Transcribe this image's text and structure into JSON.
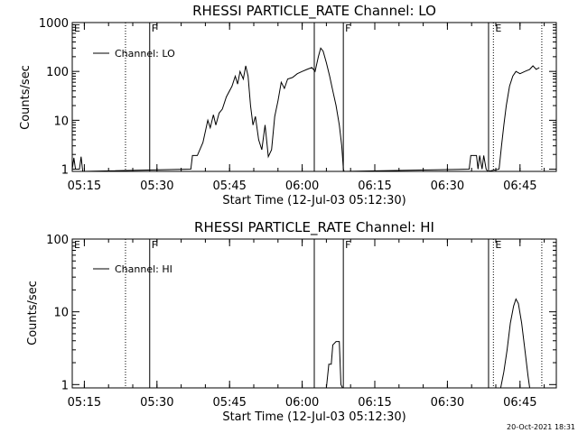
{
  "chart_data": [
    {
      "type": "line",
      "title": "RHESSI PARTICLE_RATE Channel: LO",
      "xlabel": "Start Time (12-Jul-03 05:12:30)",
      "ylabel": "Counts/sec",
      "yscale": "log",
      "ylim": [
        0.9,
        1000
      ],
      "xlim_minutes_label": [
        "05:12:30",
        "06:52:30"
      ],
      "x_ticks": [
        "05:15",
        "05:30",
        "05:45",
        "06:00",
        "06:15",
        "06:30",
        "06:45"
      ],
      "y_ticks": [
        "1",
        "10",
        "100",
        "1000"
      ],
      "legend": {
        "label": "Channel: LO",
        "position": "top-left"
      },
      "markers": [
        {
          "time": "05:12:30",
          "style": "solid",
          "label": "E"
        },
        {
          "time": "05:23:30",
          "style": "dotted",
          "label": ""
        },
        {
          "time": "05:28:30",
          "style": "solid",
          "label": "F"
        },
        {
          "time": "06:02:30",
          "style": "solid",
          "label": ""
        },
        {
          "time": "06:08:30",
          "style": "solid",
          "label": "F"
        },
        {
          "time": "06:38:30",
          "style": "solid",
          "label": ""
        },
        {
          "time": "06:39:30",
          "style": "dotted",
          "label": "E"
        },
        {
          "time": "06:49:30",
          "style": "dotted",
          "label": ""
        }
      ],
      "series": [
        {
          "name": "Channel: LO",
          "points": [
            [
              "05:12:30",
              1
            ],
            [
              "05:12:50",
              1.7
            ],
            [
              "05:13:10",
              1
            ],
            [
              "05:14:00",
              1
            ],
            [
              "05:14:20",
              1.8
            ],
            [
              "05:14:40",
              0.9
            ],
            [
              "05:37:00",
              1
            ],
            [
              "05:37:20",
              1.9
            ],
            [
              "05:38:20",
              1.9
            ],
            [
              "05:39:30",
              3.5
            ],
            [
              "05:40:30",
              10
            ],
            [
              "05:41:00",
              7
            ],
            [
              "05:41:40",
              13
            ],
            [
              "05:42:10",
              8
            ],
            [
              "05:42:50",
              14
            ],
            [
              "05:43:30",
              17
            ],
            [
              "05:44:20",
              30
            ],
            [
              "05:45:30",
              50
            ],
            [
              "05:46:10",
              80
            ],
            [
              "05:46:40",
              55
            ],
            [
              "05:47:10",
              100
            ],
            [
              "05:47:50",
              70
            ],
            [
              "05:48:20",
              130
            ],
            [
              "05:48:50",
              80
            ],
            [
              "05:49:20",
              20
            ],
            [
              "05:49:50",
              8
            ],
            [
              "05:50:20",
              12
            ],
            [
              "05:51:00",
              4
            ],
            [
              "05:51:40",
              2.5
            ],
            [
              "05:52:20",
              8
            ],
            [
              "05:53:00",
              1.8
            ],
            [
              "05:53:40",
              2.5
            ],
            [
              "05:54:20",
              12
            ],
            [
              "05:55:00",
              25
            ],
            [
              "05:55:40",
              60
            ],
            [
              "05:56:20",
              45
            ],
            [
              "05:57:00",
              70
            ],
            [
              "05:58:00",
              75
            ],
            [
              "05:59:00",
              90
            ],
            [
              "06:00:00",
              100
            ],
            [
              "06:01:00",
              110
            ],
            [
              "06:02:00",
              120
            ],
            [
              "06:02:40",
              100
            ],
            [
              "06:03:20",
              200
            ],
            [
              "06:03:50",
              300
            ],
            [
              "06:04:20",
              260
            ],
            [
              "06:05:00",
              150
            ],
            [
              "06:05:40",
              80
            ],
            [
              "06:06:20",
              40
            ],
            [
              "06:07:00",
              20
            ],
            [
              "06:07:40",
              8
            ],
            [
              "06:08:10",
              3
            ],
            [
              "06:08:30",
              1
            ],
            [
              "06:08:40",
              0.9
            ],
            [
              "06:34:30",
              1
            ],
            [
              "06:34:50",
              1.9
            ],
            [
              "06:36:00",
              1.9
            ],
            [
              "06:36:20",
              1
            ],
            [
              "06:36:40",
              1.9
            ],
            [
              "06:37:10",
              1
            ],
            [
              "06:37:30",
              1.9
            ],
            [
              "06:38:00",
              1
            ],
            [
              "06:38:20",
              0.9
            ],
            [
              "06:40:40",
              1
            ],
            [
              "06:41:10",
              3
            ],
            [
              "06:41:40",
              8
            ],
            [
              "06:42:10",
              20
            ],
            [
              "06:42:50",
              50
            ],
            [
              "06:43:30",
              80
            ],
            [
              "06:44:10",
              100
            ],
            [
              "06:45:00",
              90
            ],
            [
              "06:46:00",
              100
            ],
            [
              "06:47:00",
              110
            ],
            [
              "06:47:40",
              130
            ],
            [
              "06:48:20",
              110
            ],
            [
              "06:49:00",
              120
            ]
          ]
        }
      ]
    },
    {
      "type": "line",
      "title": "RHESSI PARTICLE_RATE Channel: HI",
      "xlabel": "Start Time (12-Jul-03 05:12:30)",
      "ylabel": "Counts/sec",
      "yscale": "log",
      "ylim": [
        0.9,
        100
      ],
      "xlim_minutes_label": [
        "05:12:30",
        "06:52:30"
      ],
      "x_ticks": [
        "05:15",
        "05:30",
        "05:45",
        "06:00",
        "06:15",
        "06:30",
        "06:45"
      ],
      "y_ticks": [
        "1",
        "10",
        "100"
      ],
      "legend": {
        "label": "Channel: HI",
        "position": "top-left"
      },
      "markers": [
        {
          "time": "05:12:30",
          "style": "solid",
          "label": "E"
        },
        {
          "time": "05:23:30",
          "style": "dotted",
          "label": ""
        },
        {
          "time": "05:28:30",
          "style": "solid",
          "label": "F"
        },
        {
          "time": "06:02:30",
          "style": "solid",
          "label": ""
        },
        {
          "time": "06:08:30",
          "style": "solid",
          "label": "F"
        },
        {
          "time": "06:38:30",
          "style": "solid",
          "label": ""
        },
        {
          "time": "06:39:30",
          "style": "dotted",
          "label": "E"
        },
        {
          "time": "06:49:30",
          "style": "dotted",
          "label": ""
        }
      ],
      "series": [
        {
          "name": "Channel: HI",
          "points": [
            [
              "06:05:00",
              0.9
            ],
            [
              "06:05:30",
              1.9
            ],
            [
              "06:06:00",
              1.9
            ],
            [
              "06:06:20",
              3.5
            ],
            [
              "06:07:00",
              3.9
            ],
            [
              "06:07:40",
              3.9
            ],
            [
              "06:08:00",
              1
            ],
            [
              "06:08:20",
              0.9
            ],
            [
              "06:41:00",
              0.9
            ],
            [
              "06:41:40",
              1.5
            ],
            [
              "06:42:20",
              3
            ],
            [
              "06:43:00",
              7
            ],
            [
              "06:43:40",
              12
            ],
            [
              "06:44:10",
              15
            ],
            [
              "06:44:40",
              13
            ],
            [
              "06:45:20",
              7
            ],
            [
              "06:46:00",
              3
            ],
            [
              "06:46:40",
              1.3
            ],
            [
              "06:47:00",
              0.9
            ]
          ]
        }
      ]
    }
  ],
  "footer": {
    "timestamp": "20-Oct-2021 18:31"
  }
}
